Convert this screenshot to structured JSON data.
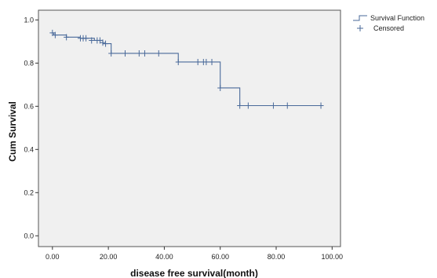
{
  "chart_data": {
    "type": "line",
    "xlabel": "disease free survival",
    "xlabel_unit": "(month)",
    "ylabel": "Cum Survival",
    "xlim": [
      -5,
      103
    ],
    "ylim": [
      -0.05,
      1.045
    ],
    "x_ticks": [
      0,
      20,
      40,
      60,
      80,
      100
    ],
    "x_tick_labels": [
      "0.00",
      "20.00",
      "40.00",
      "60.00",
      "80.00",
      "100.00"
    ],
    "y_ticks": [
      0,
      0.2,
      0.4,
      0.6,
      0.8,
      1.0
    ],
    "y_tick_labels": [
      "0.0",
      "0.2",
      "0.4",
      "0.6",
      "0.8",
      "1.0"
    ],
    "grid": false,
    "legend_position": "top-right",
    "legend": [
      "Survival Function",
      "Censored"
    ],
    "series": [
      {
        "name": "Survival Function",
        "step": true,
        "x": [
          0,
          0.5,
          5,
          10,
          15,
          18,
          21,
          45,
          60,
          67,
          96
        ],
        "y": [
          0.94,
          0.93,
          0.92,
          0.915,
          0.905,
          0.89,
          0.845,
          0.805,
          0.685,
          0.603,
          0.603
        ]
      },
      {
        "name": "Censored",
        "marker": "plus",
        "x": [
          0,
          1,
          5,
          10,
          11,
          12,
          14,
          16,
          17,
          18,
          19,
          21,
          26,
          31,
          33,
          38,
          45,
          52,
          54,
          55,
          57,
          60,
          67,
          70,
          79,
          84,
          96
        ],
        "y": [
          0.94,
          0.93,
          0.92,
          0.915,
          0.915,
          0.915,
          0.905,
          0.905,
          0.905,
          0.895,
          0.89,
          0.845,
          0.845,
          0.845,
          0.845,
          0.845,
          0.805,
          0.805,
          0.805,
          0.805,
          0.805,
          0.685,
          0.603,
          0.603,
          0.603,
          0.603,
          0.603
        ]
      }
    ],
    "colors": {
      "line": "#4a6a9a",
      "plot_background": "#f0f0f0",
      "frame": "#555555"
    }
  }
}
